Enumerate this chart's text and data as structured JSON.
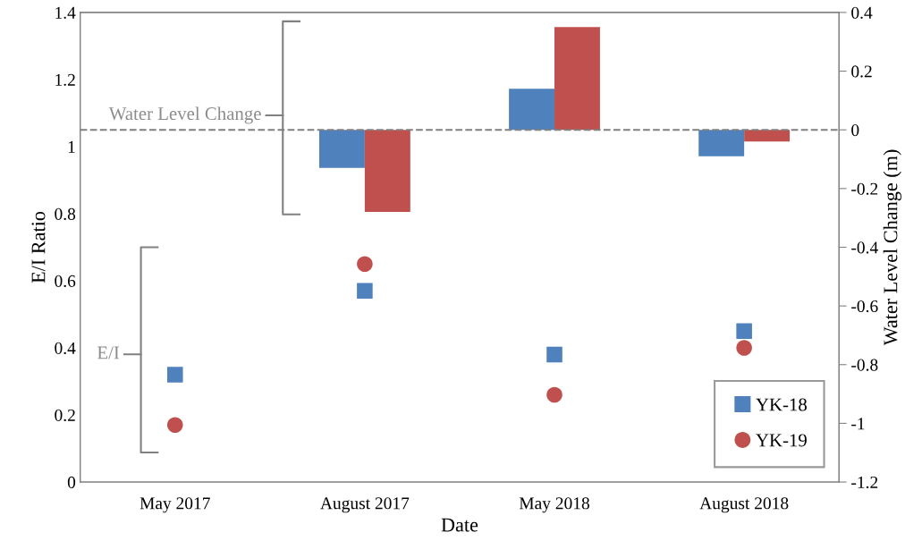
{
  "chart_data": {
    "type": "bar",
    "xlabel": "Date",
    "ylabel": "E/I Ratio",
    "y2label": "Water Level Change (m)",
    "categories": [
      "May 2017",
      "August 2017",
      "May 2018",
      "August 2018"
    ],
    "series": [
      {
        "axis": "y2",
        "color": "#4f81bd",
        "values": [
          null,
          -0.13,
          0.14,
          -0.09
        ]
      },
      {
        "axis": "y2",
        "color": "#c0504d",
        "values": [
          null,
          -0.28,
          0.35,
          -0.04
        ]
      },
      {
        "type": "scatter",
        "name": "YK-18",
        "marker": "square",
        "color": "#4f81bd",
        "values": [
          0.32,
          0.57,
          0.38,
          0.45
        ]
      },
      {
        "type": "scatter",
        "name": "YK-19",
        "marker": "circle",
        "color": "#c0504d",
        "values": [
          0.17,
          0.65,
          0.26,
          0.4
        ]
      }
    ],
    "ylim": [
      0,
      1.4
    ],
    "yticks": [
      0,
      0.2,
      0.4,
      0.6,
      0.8,
      1,
      1.2,
      1.4
    ],
    "y2lim": [
      -1.2,
      0.4
    ],
    "y2ticks": [
      -1.2,
      -1,
      -0.8,
      -0.6,
      -0.4,
      -0.2,
      0,
      0.2,
      0.4
    ],
    "ref_lines": [
      {
        "axis": "y2",
        "value": 0,
        "color": "#808080",
        "line_style": "dashed"
      }
    ],
    "annotations": [
      "Water Level Change",
      "E/I"
    ],
    "legend": "bottom right",
    "grid": false
  }
}
